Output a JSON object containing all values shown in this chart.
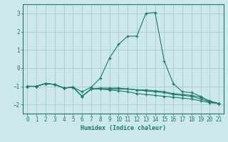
{
  "xlabel": "Humidex (Indice chaleur)",
  "ylabel": "",
  "xlim": [
    -0.5,
    21.5
  ],
  "ylim": [
    -2.5,
    3.5
  ],
  "yticks": [
    -2,
    -1,
    0,
    1,
    2,
    3
  ],
  "xticks": [
    0,
    1,
    2,
    3,
    4,
    5,
    6,
    7,
    8,
    9,
    10,
    11,
    12,
    13,
    14,
    15,
    16,
    17,
    18,
    19,
    20,
    21
  ],
  "bg_color": "#cce8ea",
  "grid_color": "#aacfd2",
  "line_color": "#1a7a6e",
  "lines": [
    {
      "x": [
        0,
        1,
        2,
        3,
        4,
        5,
        6,
        7,
        8,
        9,
        10,
        11,
        12,
        13,
        14,
        15,
        16,
        17,
        18,
        19,
        20,
        21
      ],
      "y": [
        -1,
        -1,
        -0.85,
        -0.9,
        -1.1,
        -1.05,
        -1.3,
        -1.05,
        -0.55,
        0.55,
        1.3,
        1.75,
        1.75,
        3.0,
        3.05,
        0.4,
        -0.85,
        -1.3,
        -1.35,
        -1.55,
        -1.85,
        -1.95
      ]
    },
    {
      "x": [
        0,
        1,
        2,
        3,
        4,
        5,
        6,
        7,
        8,
        9,
        10,
        11,
        12,
        13,
        14,
        15,
        16,
        17,
        18,
        19,
        20,
        21
      ],
      "y": [
        -1,
        -1,
        -0.85,
        -0.9,
        -1.1,
        -1.05,
        -1.55,
        -1.15,
        -1.15,
        -1.15,
        -1.15,
        -1.15,
        -1.2,
        -1.25,
        -1.3,
        -1.35,
        -1.45,
        -1.5,
        -1.55,
        -1.7,
        -1.85,
        -1.95
      ]
    },
    {
      "x": [
        0,
        1,
        2,
        3,
        4,
        5,
        6,
        7,
        8,
        9,
        10,
        11,
        12,
        13,
        14,
        15,
        16,
        17,
        18,
        19,
        20,
        21
      ],
      "y": [
        -1,
        -1,
        -0.85,
        -0.9,
        -1.1,
        -1.05,
        -1.55,
        -1.15,
        -1.15,
        -1.2,
        -1.25,
        -1.3,
        -1.4,
        -1.45,
        -1.5,
        -1.55,
        -1.6,
        -1.65,
        -1.7,
        -1.8,
        -1.9,
        -1.95
      ]
    },
    {
      "x": [
        0,
        1,
        2,
        3,
        4,
        5,
        6,
        7,
        8,
        9,
        10,
        11,
        12,
        13,
        14,
        15,
        16,
        17,
        18,
        19,
        20,
        21
      ],
      "y": [
        -1,
        -1,
        -0.85,
        -0.9,
        -1.1,
        -1.05,
        -1.55,
        -1.15,
        -1.1,
        -1.1,
        -1.1,
        -1.15,
        -1.2,
        -1.2,
        -1.25,
        -1.3,
        -1.4,
        -1.45,
        -1.5,
        -1.6,
        -1.8,
        -1.95
      ]
    }
  ]
}
